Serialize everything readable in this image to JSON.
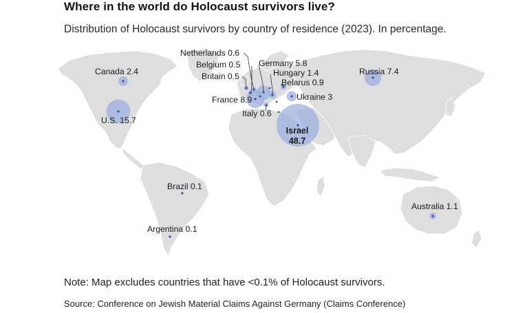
{
  "title": "Where in the world do Holocaust survivors live?",
  "subtitle": "Distribution of Holocaust survivors by country of residence (2023). In percentage.",
  "note": "Note: Map excludes countries that have <0.1% of Holocaust survivors.",
  "source": "Source: Conference on Jewish Material Claims Against Germany (Claims Conference)",
  "colors": {
    "land": "#dedede",
    "ocean": "#ffffff",
    "bubble": "#9aaddf",
    "dot": "#2f4fa6",
    "text": "#1a1a1a"
  },
  "map_data": {
    "unit": "percent",
    "year": 2023,
    "countries": [
      {
        "id": "us",
        "name": "U.S.",
        "value": 15.7,
        "label": "U.S. 15.7"
      },
      {
        "id": "canada",
        "name": "Canada",
        "value": 2.4,
        "label": "Canada 2.4"
      },
      {
        "id": "brazil",
        "name": "Brazil",
        "value": 0.1,
        "label": "Brazil 0.1"
      },
      {
        "id": "argentina",
        "name": "Argentina",
        "value": 0.1,
        "label": "Argentina 0.1"
      },
      {
        "id": "netherlands",
        "name": "Netherlands",
        "value": 0.6,
        "label": "Netherlands 0.6"
      },
      {
        "id": "belgium",
        "name": "Belgium",
        "value": 0.5,
        "label": "Belgium 0.5"
      },
      {
        "id": "britain",
        "name": "Britain",
        "value": 0.5,
        "label": "Britain 0.5"
      },
      {
        "id": "france",
        "name": "France",
        "value": 8.9,
        "label": "France 8.9"
      },
      {
        "id": "germany",
        "name": "Germany",
        "value": 5.8,
        "label": "Germany 5.8"
      },
      {
        "id": "hungary",
        "name": "Hungary",
        "value": 1.4,
        "label": "Hungary 1.4"
      },
      {
        "id": "belarus",
        "name": "Belarus",
        "value": 0.9,
        "label": "Belarus 0.9"
      },
      {
        "id": "ukraine",
        "name": "Ukraine",
        "value": 3,
        "label": "Ukraine 3"
      },
      {
        "id": "italy",
        "name": "Italy",
        "value": 0.6,
        "label": "Italy 0.6"
      },
      {
        "id": "israel",
        "name": "Israel",
        "value": 48.7,
        "label_name": "Israel",
        "label_value": "48.7"
      },
      {
        "id": "russia",
        "name": "Russia",
        "value": 7.4,
        "label": "Russia 7.4"
      },
      {
        "id": "australia",
        "name": "Australia",
        "value": 1.1,
        "label": "Australia 1.1"
      }
    ]
  }
}
